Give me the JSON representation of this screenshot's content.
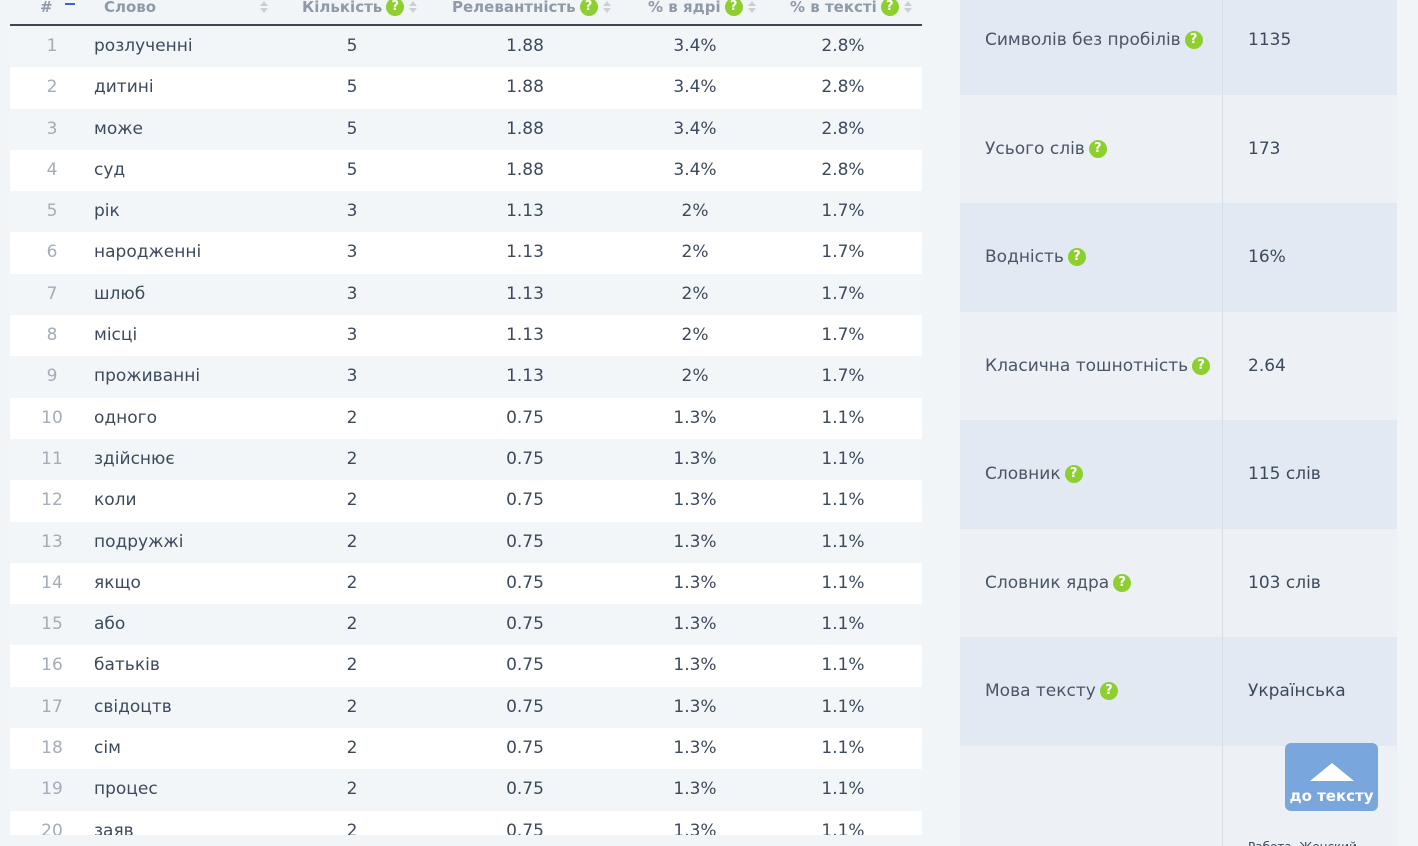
{
  "table": {
    "headers": {
      "num": "#",
      "word": "Слово",
      "count": "Кількість",
      "relevance": "Релевантність",
      "core_pct": "% в ядрі",
      "text_pct": "% в тексті"
    },
    "rows": [
      {
        "n": "1",
        "word": "розлученні",
        "count": "5",
        "rel": "1.88",
        "core": "3.4%",
        "text": "2.8%"
      },
      {
        "n": "2",
        "word": "дитині",
        "count": "5",
        "rel": "1.88",
        "core": "3.4%",
        "text": "2.8%"
      },
      {
        "n": "3",
        "word": "може",
        "count": "5",
        "rel": "1.88",
        "core": "3.4%",
        "text": "2.8%"
      },
      {
        "n": "4",
        "word": "суд",
        "count": "5",
        "rel": "1.88",
        "core": "3.4%",
        "text": "2.8%"
      },
      {
        "n": "5",
        "word": "рік",
        "count": "3",
        "rel": "1.13",
        "core": "2%",
        "text": "1.7%"
      },
      {
        "n": "6",
        "word": "народженні",
        "count": "3",
        "rel": "1.13",
        "core": "2%",
        "text": "1.7%"
      },
      {
        "n": "7",
        "word": "шлюб",
        "count": "3",
        "rel": "1.13",
        "core": "2%",
        "text": "1.7%"
      },
      {
        "n": "8",
        "word": "місці",
        "count": "3",
        "rel": "1.13",
        "core": "2%",
        "text": "1.7%"
      },
      {
        "n": "9",
        "word": "проживанні",
        "count": "3",
        "rel": "1.13",
        "core": "2%",
        "text": "1.7%"
      },
      {
        "n": "10",
        "word": "одного",
        "count": "2",
        "rel": "0.75",
        "core": "1.3%",
        "text": "1.1%"
      },
      {
        "n": "11",
        "word": "здійснює",
        "count": "2",
        "rel": "0.75",
        "core": "1.3%",
        "text": "1.1%"
      },
      {
        "n": "12",
        "word": "коли",
        "count": "2",
        "rel": "0.75",
        "core": "1.3%",
        "text": "1.1%"
      },
      {
        "n": "13",
        "word": "подружжі",
        "count": "2",
        "rel": "0.75",
        "core": "1.3%",
        "text": "1.1%"
      },
      {
        "n": "14",
        "word": "якщо",
        "count": "2",
        "rel": "0.75",
        "core": "1.3%",
        "text": "1.1%"
      },
      {
        "n": "15",
        "word": "або",
        "count": "2",
        "rel": "0.75",
        "core": "1.3%",
        "text": "1.1%"
      },
      {
        "n": "16",
        "word": "батьків",
        "count": "2",
        "rel": "0.75",
        "core": "1.3%",
        "text": "1.1%"
      },
      {
        "n": "17",
        "word": "свідоцтв",
        "count": "2",
        "rel": "0.75",
        "core": "1.3%",
        "text": "1.1%"
      },
      {
        "n": "18",
        "word": "сім",
        "count": "2",
        "rel": "0.75",
        "core": "1.3%",
        "text": "1.1%"
      },
      {
        "n": "19",
        "word": "процес",
        "count": "2",
        "rel": "0.75",
        "core": "1.3%",
        "text": "1.1%"
      },
      {
        "n": "20",
        "word": "заяв",
        "count": "2",
        "rel": "0.75",
        "core": "1.3%",
        "text": "1.1%"
      }
    ]
  },
  "stats": [
    {
      "label": "Символів без пробілів",
      "value": "1135"
    },
    {
      "label": "Усього слів",
      "value": "173"
    },
    {
      "label": "Водність",
      "value": "16%"
    },
    {
      "label": "Класична тошнотність",
      "value": "2.64"
    },
    {
      "label": "Словник",
      "value": "115 слів"
    },
    {
      "label": "Словник ядра",
      "value": "103 слів"
    },
    {
      "label": "Мова тексту",
      "value": "Українська"
    },
    {
      "label": "",
      "value": "Работа, Женский"
    }
  ],
  "help_glyph": "?",
  "to_text_button": "до тексту",
  "colors": {
    "help_icon": "#8ccf2e",
    "button": "#7aa6de",
    "sort_active": "#3b63d6"
  }
}
